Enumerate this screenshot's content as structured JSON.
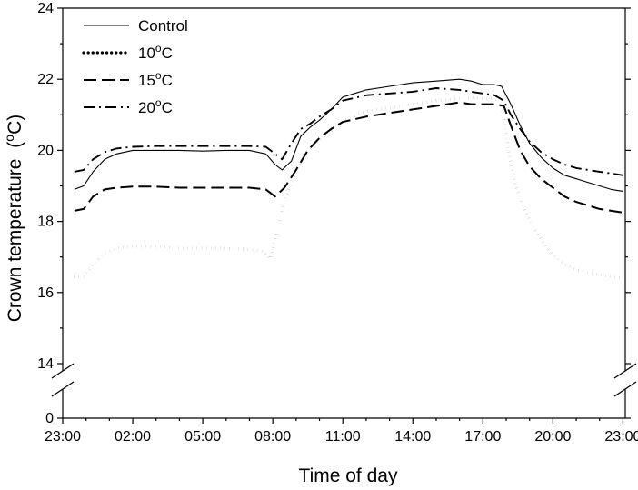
{
  "chart_data": {
    "type": "line",
    "xlabel": "Time of day",
    "ylabel": "Crown temperature",
    "ylabel_unit": "(°C)",
    "x_tick_labels": [
      "23:00",
      "02:00",
      "05:00",
      "08:00",
      "11:00",
      "14:00",
      "17:00",
      "20:00",
      "23:00"
    ],
    "x_tick_hours": [
      0,
      3,
      6,
      9,
      12,
      15,
      18,
      21,
      24
    ],
    "x_range_hours": [
      0,
      24.1
    ],
    "y_tick_labels": [
      "0",
      "14",
      "16",
      "18",
      "20",
      "22",
      "24"
    ],
    "y_tick_values": [
      0,
      14,
      16,
      18,
      20,
      22,
      24
    ],
    "ylim_upper": [
      14,
      24
    ],
    "axis_break": "between 0 and 14",
    "legend_position": "top-left",
    "series": [
      {
        "name": "Control",
        "legend_main": "Control",
        "legend_sup": "",
        "legend_tail": "",
        "style": "solid",
        "x": [
          0.5,
          0.9,
          1.3,
          1.8,
          2.3,
          3,
          4,
          5,
          6,
          7,
          8,
          8.7,
          9.1,
          9.4,
          9.8,
          10.2,
          10.6,
          11,
          11.5,
          12,
          13,
          14,
          15,
          16,
          17,
          17.5,
          18,
          18.5,
          18.8,
          19.2,
          19.6,
          20,
          20.5,
          21,
          21.5,
          22,
          22.5,
          23,
          23.5,
          24
        ],
        "y": [
          18.9,
          19.0,
          19.4,
          19.75,
          19.9,
          20.0,
          20.0,
          20.0,
          19.98,
          20.0,
          20.0,
          19.9,
          19.6,
          19.45,
          19.7,
          20.4,
          20.65,
          20.85,
          21.15,
          21.5,
          21.7,
          21.8,
          21.9,
          21.95,
          22.0,
          21.95,
          21.85,
          21.85,
          21.8,
          21.3,
          20.7,
          20.2,
          19.8,
          19.5,
          19.3,
          19.2,
          19.1,
          19.0,
          18.9,
          18.85
        ]
      },
      {
        "name": "10°C",
        "legend_main": "10",
        "legend_sup": "o",
        "legend_tail": "C",
        "style": "dotted",
        "x": [
          0.5,
          0.9,
          1.3,
          1.8,
          2.3,
          3,
          4,
          5,
          6,
          7,
          8,
          8.6,
          8.9,
          9.1,
          9.5,
          10,
          10.5,
          11,
          11.5,
          12,
          13,
          14,
          15,
          16,
          17,
          17.5,
          18,
          18.4,
          18.7,
          18.9,
          19.1,
          19.4,
          19.8,
          20.2,
          20.6,
          21,
          21.5,
          22,
          22.5,
          23,
          23.5,
          24
        ],
        "y": [
          16.45,
          16.45,
          16.8,
          17.1,
          17.25,
          17.3,
          17.3,
          17.25,
          17.25,
          17.25,
          17.2,
          17.15,
          16.95,
          17.5,
          18.6,
          19.4,
          19.95,
          20.3,
          20.55,
          20.85,
          21.1,
          21.2,
          21.3,
          21.4,
          21.45,
          21.5,
          21.45,
          21.45,
          21.4,
          21.0,
          20.0,
          19.0,
          18.3,
          17.8,
          17.4,
          17.05,
          16.8,
          16.65,
          16.55,
          16.5,
          16.45,
          16.4
        ]
      },
      {
        "name": "15°C",
        "legend_main": "15",
        "legend_sup": "o",
        "legend_tail": "C",
        "style": "dashed",
        "x": [
          0.5,
          0.9,
          1.3,
          1.8,
          2.3,
          3,
          4,
          5,
          6,
          7,
          8,
          8.7,
          9.1,
          9.5,
          10,
          10.5,
          11,
          11.5,
          12,
          13,
          14,
          15,
          16,
          17,
          17.5,
          18,
          18.5,
          18.9,
          19.2,
          19.6,
          20,
          20.5,
          21,
          21.5,
          22,
          22.5,
          23,
          23.5,
          24
        ],
        "y": [
          18.3,
          18.35,
          18.7,
          18.9,
          18.95,
          18.98,
          18.98,
          18.95,
          18.95,
          18.95,
          18.95,
          18.9,
          18.7,
          18.95,
          19.45,
          20.0,
          20.35,
          20.6,
          20.8,
          20.95,
          21.05,
          21.15,
          21.25,
          21.35,
          21.3,
          21.3,
          21.3,
          21.25,
          20.7,
          20.0,
          19.55,
          19.2,
          18.95,
          18.7,
          18.55,
          18.45,
          18.35,
          18.3,
          18.25
        ]
      },
      {
        "name": "20°C",
        "legend_main": "20",
        "legend_sup": "o",
        "legend_tail": "C",
        "style": "dashdot",
        "x": [
          0.5,
          0.9,
          1.3,
          1.8,
          2.3,
          3,
          4,
          5,
          6,
          7,
          8,
          8.7,
          9.1,
          9.4,
          9.8,
          10.2,
          10.6,
          11,
          11.5,
          12,
          13,
          14,
          15,
          16,
          17,
          17.5,
          18,
          18.5,
          18.9,
          19.2,
          19.6,
          20,
          20.5,
          21,
          21.5,
          22,
          22.5,
          23,
          23.5,
          24
        ],
        "y": [
          19.4,
          19.45,
          19.75,
          19.95,
          20.05,
          20.1,
          20.12,
          20.12,
          20.12,
          20.12,
          20.12,
          20.1,
          19.9,
          19.75,
          20.2,
          20.6,
          20.75,
          20.95,
          21.15,
          21.4,
          21.55,
          21.6,
          21.65,
          21.75,
          21.7,
          21.65,
          21.6,
          21.55,
          21.4,
          21.0,
          20.6,
          20.25,
          19.95,
          19.75,
          19.6,
          19.5,
          19.45,
          19.4,
          19.35,
          19.3
        ]
      }
    ]
  }
}
